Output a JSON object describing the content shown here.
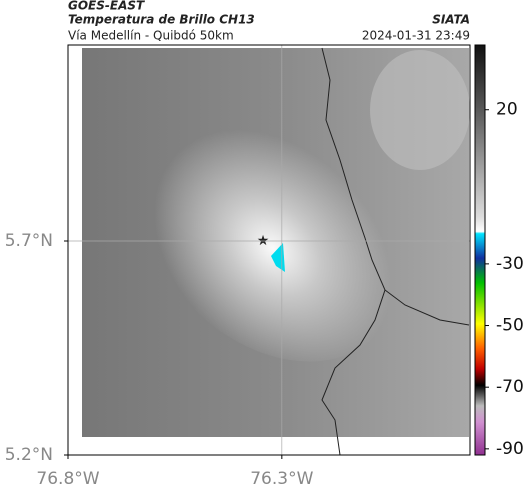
{
  "header": {
    "satellite": "GOES-EAST",
    "product": "Temperatura de Brillo CH13",
    "source": "SIATA",
    "route": "Vía Medellín - Quibdó 50km",
    "timestamp": "2024-01-31 23:49"
  },
  "map": {
    "xlim": [
      -76.8,
      -75.86
    ],
    "ylim": [
      5.2,
      6.158
    ],
    "xticks": [
      {
        "value": -76.8,
        "label": "76.8°W"
      },
      {
        "value": -76.3,
        "label": "76.3°W"
      }
    ],
    "yticks": [
      {
        "value": 5.2,
        "label": "5.2°N"
      },
      {
        "value": 5.7,
        "label": "5.7°N"
      }
    ]
  },
  "colorbar": {
    "lim": [
      -92,
      41
    ],
    "ticks": [
      20,
      -30,
      -50,
      -70,
      -90
    ]
  }
}
